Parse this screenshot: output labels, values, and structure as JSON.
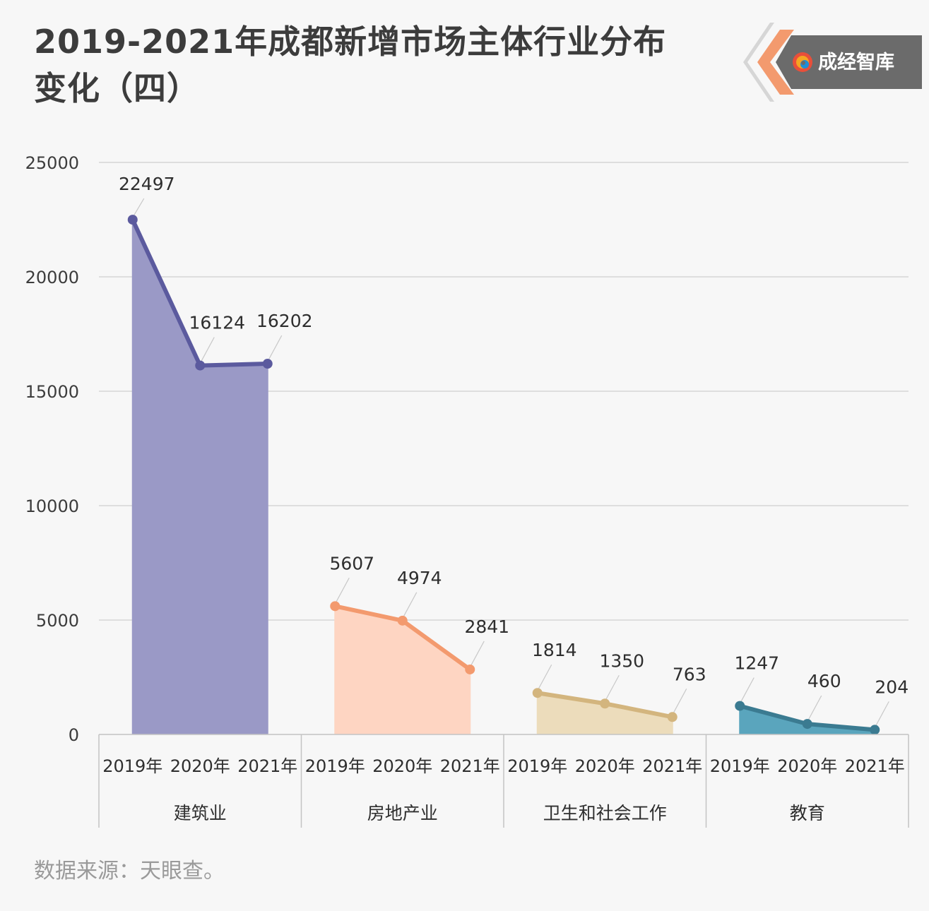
{
  "title_line1": "2019-2021年成都新增市场主体行业分布",
  "title_line2": "变化（四）",
  "logo_text": "成经智库",
  "source": "数据来源：天眼查。",
  "colors": {
    "background": "#f7f7f7",
    "grid": "#d6d6d6",
    "logo_bg": "#6b6b6b",
    "logo_accent": "#f39a6e"
  },
  "chart_data": {
    "type": "area",
    "ylim": [
      0,
      25000
    ],
    "yticks": [
      0,
      5000,
      10000,
      15000,
      20000,
      25000
    ],
    "ytick_labels": [
      "0",
      "5000",
      "10000",
      "15000",
      "20000",
      "25000"
    ],
    "grid": true,
    "legend": "none",
    "groups": [
      {
        "name": "建筑业",
        "categories": [
          "2019年",
          "2020年",
          "2021年"
        ],
        "values": [
          22497,
          16124,
          16202
        ],
        "value_labels": [
          "22497",
          "16124",
          "16202"
        ],
        "line_color": "#5b5a9e",
        "fill_color": "#9a99c6"
      },
      {
        "name": "房地产业",
        "categories": [
          "2019年",
          "2020年",
          "2021年"
        ],
        "values": [
          5607,
          4974,
          2841
        ],
        "value_labels": [
          "5607",
          "4974",
          "2841"
        ],
        "line_color": "#f39a6e",
        "fill_color": "#fed5c2"
      },
      {
        "name": "卫生和社会工作",
        "categories": [
          "2019年",
          "2020年",
          "2021年"
        ],
        "values": [
          1814,
          1350,
          763
        ],
        "value_labels": [
          "1814",
          "1350",
          "763"
        ],
        "line_color": "#d3b57e",
        "fill_color": "#ecdcbb"
      },
      {
        "name": "教育",
        "categories": [
          "2019年",
          "2020年",
          "2021年"
        ],
        "values": [
          1247,
          460,
          204
        ],
        "value_labels": [
          "1247",
          "460",
          "204"
        ],
        "line_color": "#3b7b91",
        "fill_color": "#5aa5bd"
      }
    ]
  }
}
